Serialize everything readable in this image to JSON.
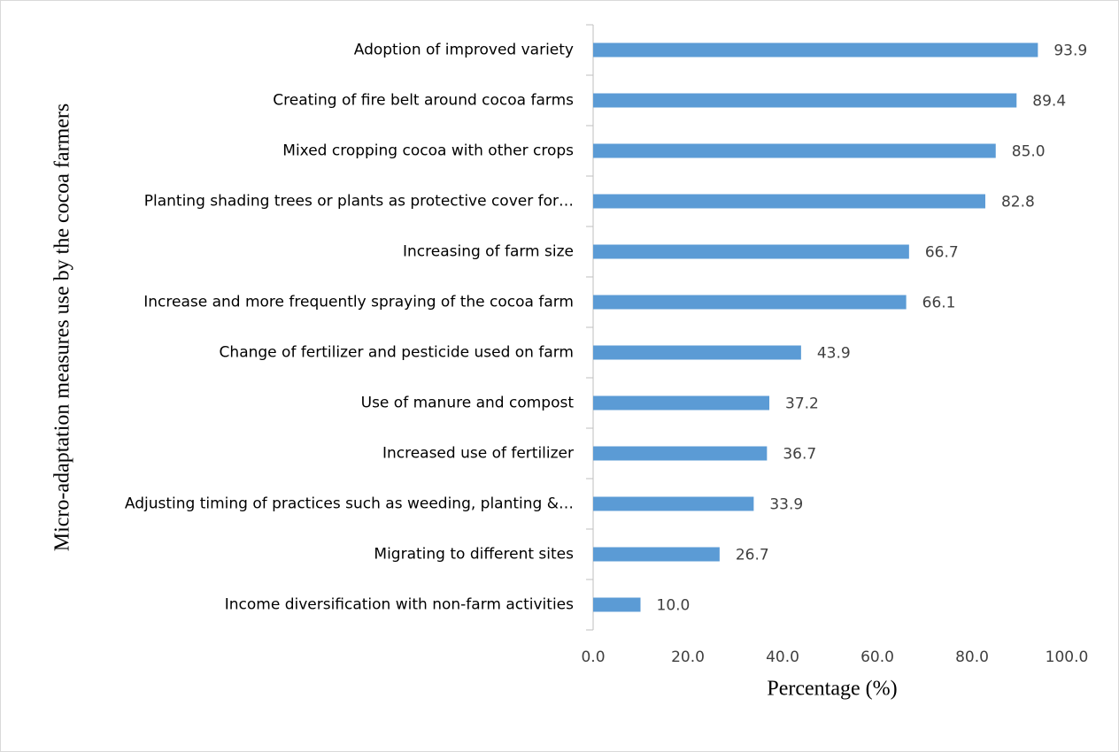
{
  "chart_data": {
    "type": "barh",
    "y_axis_label": "Micro-adaptation measures use by the cocoa farmers",
    "x_axis_label": "Percentage (%)",
    "categories": [
      "Adoption of improved variety",
      "Creating of fire belt around cocoa farms",
      "Mixed cropping cocoa with other crops",
      "Planting shading trees or plants as protective cover for…",
      "Increasing of farm size",
      "Increase and more frequently spraying of the cocoa farm",
      "Change of fertilizer and pesticide used on farm",
      "Use of manure and compost",
      "Increased use of fertilizer",
      "Adjusting timing of practices such as weeding, planting &…",
      "Migrating to different sites",
      "Income diversification with non-farm activities"
    ],
    "values": [
      93.9,
      89.4,
      85.0,
      82.8,
      66.7,
      66.1,
      43.9,
      37.2,
      36.7,
      33.9,
      26.7,
      10.0
    ],
    "value_labels": [
      "93.9",
      "89.4",
      "85.0",
      "82.8",
      "66.7",
      "66.1",
      "43.9",
      "37.2",
      "36.7",
      "33.9",
      "26.7",
      "10.0"
    ],
    "color": "#5b9bd5",
    "xlim": [
      0,
      100
    ],
    "xticks": [
      {
        "value": 0,
        "label": "0.0"
      },
      {
        "value": 20,
        "label": "20.0"
      },
      {
        "value": 40,
        "label": "40.0"
      },
      {
        "value": 60,
        "label": "60.0"
      },
      {
        "value": 80,
        "label": "80.0"
      },
      {
        "value": 100,
        "label": "100.0"
      }
    ],
    "grid": false
  }
}
